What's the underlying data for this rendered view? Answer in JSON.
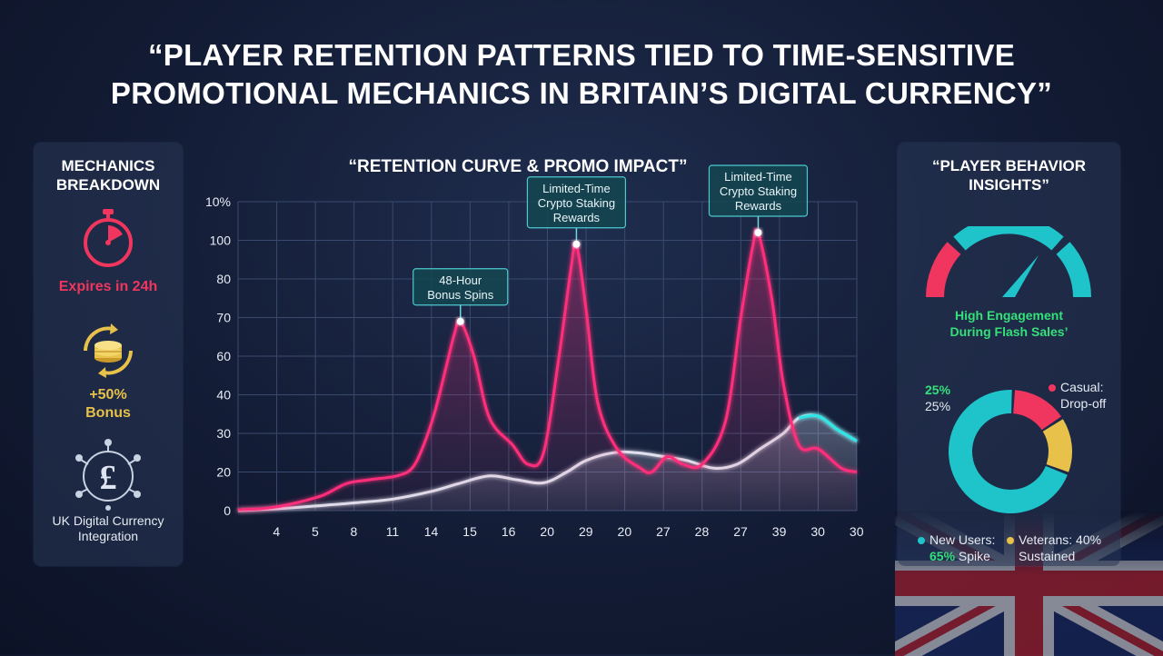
{
  "title": {
    "line1": "“PLAYER RETENTION PATTERNS TIED TO TIME-SENSITIVE",
    "line2": "PROMOTIONAL MECHANICS IN BRITAIN’S DIGITAL CURRENCY”"
  },
  "left_panel": {
    "title_line1": "MECHANICS",
    "title_line2": "BREAKDOWN",
    "timer_label": "Expires in 24h",
    "bonus_line1": "+50%",
    "bonus_line2": "Bonus",
    "currency_line1": "UK Digital Currency",
    "currency_line2": "Integration",
    "icons": [
      "stopwatch-icon",
      "coin-stack-icon",
      "pound-network-icon"
    ]
  },
  "right_panel": {
    "title_line1": "“PLAYER BEHAVIOR",
    "title_line2": "INSIGHTS”",
    "gauge_line1": "High Engagement",
    "gauge_line2": "During Flash Sales’",
    "donut_top_green": "25%",
    "donut_top_white": "25%",
    "casual_line1": "Casual:",
    "casual_line2": "Drop-off",
    "new_users_line1": "New Users:",
    "new_users_line2_green": "65%",
    "new_users_line2_rest": " Spike",
    "veterans_line1": "Veterans: 40%",
    "veterans_line2": "Sustained",
    "donut_segments": [
      {
        "name": "Casual",
        "value": 15,
        "color": "#f0365f"
      },
      {
        "name": "Veterans",
        "value": 15,
        "color": "#e8c14a"
      },
      {
        "name": "New Users",
        "value": 70,
        "color": "#1ec4c9"
      }
    ],
    "colors": {
      "pink": "#f0365f",
      "yellow": "#e8c14a",
      "teal": "#1ec4c9",
      "green": "#34e07a"
    }
  },
  "chart_data": {
    "type": "line",
    "title": "“RETENTION CURVE & PROMO IMPACT”",
    "y_tick_labels": [
      "0",
      "20",
      "30",
      "40",
      "60",
      "70",
      "80",
      "100",
      "10%"
    ],
    "x_tick_labels": [
      "4",
      "5",
      "8",
      "11",
      "14",
      "15",
      "16",
      "20",
      "29",
      "20",
      "27",
      "28",
      "27",
      "39",
      "30",
      "30"
    ],
    "grid": true,
    "series": [
      {
        "color": "#ff2d7a",
        "points": [
          [
            0,
            0.2
          ],
          [
            0.6,
            0.5
          ],
          [
            1,
            1
          ],
          [
            1.5,
            2
          ],
          [
            2.2,
            4
          ],
          [
            2.8,
            7
          ],
          [
            3.4,
            8
          ],
          [
            4.1,
            9
          ],
          [
            4.5,
            11
          ],
          [
            4.8,
            17
          ],
          [
            5.1,
            26
          ],
          [
            5.4,
            38
          ],
          [
            5.6,
            46
          ],
          [
            5.75,
            49
          ],
          [
            6.1,
            40
          ],
          [
            6.5,
            24
          ],
          [
            7.1,
            17
          ],
          [
            7.5,
            12
          ],
          [
            7.9,
            15
          ],
          [
            8.3,
            40
          ],
          [
            8.6,
            62
          ],
          [
            8.75,
            69
          ],
          [
            9.0,
            52
          ],
          [
            9.3,
            28
          ],
          [
            9.8,
            16
          ],
          [
            10.4,
            11
          ],
          [
            10.7,
            10
          ],
          [
            11.1,
            14
          ],
          [
            11.5,
            12
          ],
          [
            12.0,
            12
          ],
          [
            12.6,
            23
          ],
          [
            13.0,
            50
          ],
          [
            13.3,
            68
          ],
          [
            13.45,
            72
          ],
          [
            13.8,
            55
          ],
          [
            14.1,
            33
          ],
          [
            14.5,
            17
          ],
          [
            15.0,
            16
          ],
          [
            15.6,
            11
          ],
          [
            16.0,
            10
          ]
        ]
      },
      {
        "color": "#dfe2ee",
        "points": [
          [
            0,
            0
          ],
          [
            1,
            0.5
          ],
          [
            2,
            1.2
          ],
          [
            3,
            2
          ],
          [
            4,
            3
          ],
          [
            5,
            5
          ],
          [
            5.7,
            7
          ],
          [
            6.5,
            9
          ],
          [
            7.2,
            8
          ],
          [
            7.9,
            7.2
          ],
          [
            8.5,
            10
          ],
          [
            9.0,
            13
          ],
          [
            9.7,
            15
          ],
          [
            10.3,
            15
          ],
          [
            11.0,
            14
          ],
          [
            11.6,
            13
          ],
          [
            12.3,
            11
          ],
          [
            12.9,
            12
          ],
          [
            13.5,
            16
          ],
          [
            14.1,
            20
          ],
          [
            14.5,
            24
          ],
          [
            15.0,
            24.5
          ],
          [
            15.5,
            21
          ],
          [
            16.0,
            18
          ]
        ]
      }
    ],
    "annotations": [
      {
        "line1": "48-Hour",
        "line2": "Bonus Spins",
        "line3": "",
        "x": 5.75,
        "y": 49
      },
      {
        "line1": "Limited-Time",
        "line2": "Crypto Staking",
        "line3": "Rewards",
        "x": 8.75,
        "y": 69
      },
      {
        "line1": "Limited-Time",
        "line2": "Crypto Staking",
        "line3": "Rewards",
        "x": 13.45,
        "y": 72
      }
    ]
  },
  "decor": {
    "flag": "union-jack-flag"
  }
}
